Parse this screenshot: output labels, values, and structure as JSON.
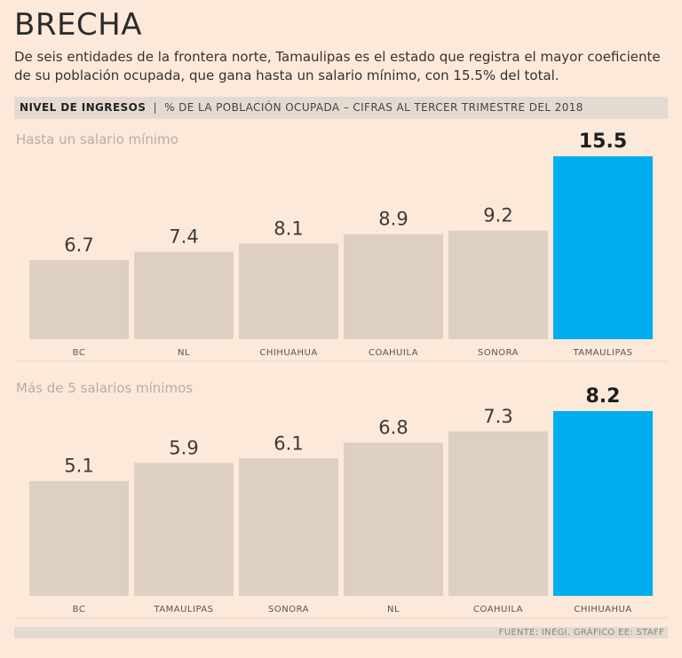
{
  "header": {
    "title": "BRECHA",
    "subtitle": "De seis entidades de la frontera norte, Tamaulipas es el estado que registra el mayor coeficiente de su población ocupada, que gana hasta un salario mínimo, con 15.5% del total.",
    "band_label": "NIVEL DE INGRESOS",
    "band_separator": "|",
    "band_note": "% DE LA POBLACIÓN OCUPADA – CIFRAS AL TERCER TRIMESTRE DEL 2018"
  },
  "footer": {
    "source": "FUENTE: INEGI. GRÁFICO EE: STAFF"
  },
  "colors": {
    "bar": "#ddd0c2",
    "highlight": "#00aeef",
    "background": "#fde9da"
  },
  "chart_data": [
    {
      "type": "bar",
      "title": "Hasta un salario mínimo",
      "categories": [
        "BC",
        "NL",
        "CHIHUAHUA",
        "COAHUILA",
        "SONORA",
        "TAMAULIPAS"
      ],
      "values": [
        6.7,
        7.4,
        8.1,
        8.9,
        9.2,
        15.5
      ],
      "labels": [
        "6.7",
        "7.4",
        "8.1",
        "8.9",
        "9.2",
        "15.5"
      ],
      "highlight_index": 5,
      "ylim": [
        0,
        15.5
      ],
      "xlabel": "",
      "ylabel": ""
    },
    {
      "type": "bar",
      "title": "Más de 5 salarios mínimos",
      "categories": [
        "BC",
        "TAMAULIPAS",
        "SONORA",
        "NL",
        "COAHUILA",
        "CHIHUAHUA"
      ],
      "values": [
        5.1,
        5.9,
        6.1,
        6.8,
        7.3,
        8.2
      ],
      "labels": [
        "5.1",
        "5.9",
        "6.1",
        "6.8",
        "7.3",
        "8.2"
      ],
      "highlight_index": 5,
      "ylim": [
        0,
        8.2
      ],
      "xlabel": "",
      "ylabel": ""
    }
  ]
}
